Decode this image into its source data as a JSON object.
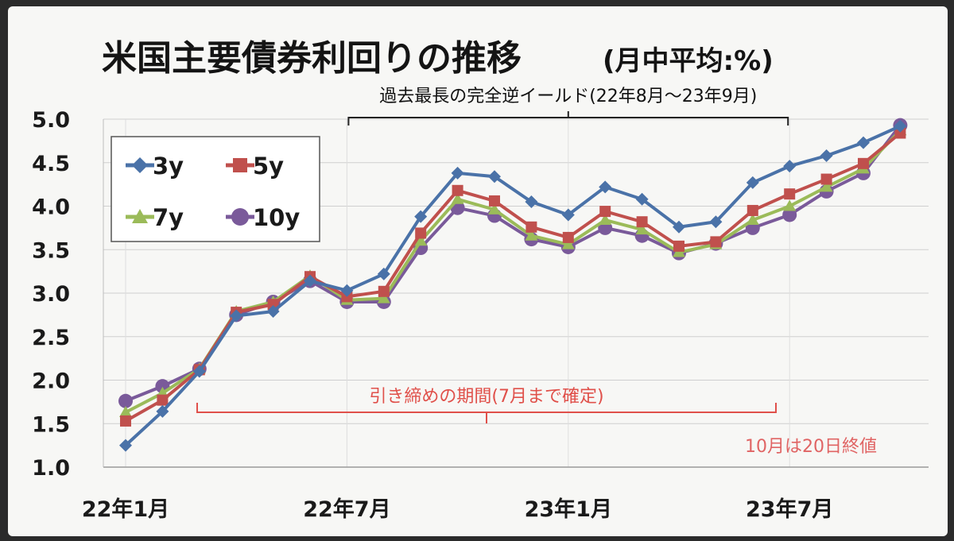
{
  "colors": {
    "3y": "#4a72a8",
    "5y": "#c0504d",
    "7y": "#9bbb59",
    "10y": "#7a5a9a",
    "bracket_black": "#222222",
    "bracket_red": "#e0504a",
    "note_red": "#e06464"
  },
  "chart_data": {
    "type": "line",
    "title": "米国主要債券利回りの推移",
    "subtitle": "(月中平均:%)",
    "xlabel": "",
    "ylabel": "",
    "ylim": [
      1.0,
      5.0
    ],
    "yticks": [
      "5.0",
      "4.5",
      "4.0",
      "3.5",
      "3.0",
      "2.5",
      "2.0",
      "1.5",
      "1.0"
    ],
    "xtick_labels": [
      {
        "label": "22年1月",
        "index": 0
      },
      {
        "label": "22年7月",
        "index": 6
      },
      {
        "label": "23年1月",
        "index": 12
      },
      {
        "label": "23年7月",
        "index": 18
      }
    ],
    "grid": true,
    "legend_position": "top-left",
    "x": [
      "22-01",
      "22-02",
      "22-03",
      "22-04",
      "22-05",
      "22-06",
      "22-07",
      "22-08",
      "22-09",
      "22-10",
      "22-11",
      "22-12",
      "23-01",
      "23-02",
      "23-03",
      "23-04",
      "23-05",
      "23-06",
      "23-07",
      "23-08",
      "23-09",
      "23-10"
    ],
    "series": [
      {
        "name": "3y",
        "marker": "diamond",
        "values": [
          1.25,
          1.64,
          2.1,
          2.74,
          2.79,
          3.14,
          3.03,
          3.22,
          3.88,
          4.38,
          4.34,
          4.05,
          3.9,
          4.22,
          4.08,
          3.76,
          3.82,
          4.27,
          4.46,
          4.58,
          4.73,
          4.92
        ]
      },
      {
        "name": "5y",
        "marker": "square",
        "values": [
          1.53,
          1.77,
          2.12,
          2.78,
          2.87,
          3.19,
          2.96,
          3.02,
          3.69,
          4.18,
          4.06,
          3.76,
          3.64,
          3.94,
          3.82,
          3.54,
          3.59,
          3.95,
          4.14,
          4.31,
          4.49,
          4.84
        ]
      },
      {
        "name": "7y",
        "marker": "triangle",
        "values": [
          1.63,
          1.85,
          2.13,
          2.79,
          2.9,
          3.2,
          2.92,
          2.94,
          3.6,
          4.08,
          3.96,
          3.66,
          3.56,
          3.84,
          3.73,
          3.47,
          3.56,
          3.84,
          4.0,
          4.22,
          4.43,
          4.87
        ]
      },
      {
        "name": "10y",
        "marker": "circle",
        "values": [
          1.76,
          1.93,
          2.13,
          2.75,
          2.9,
          3.14,
          2.9,
          2.9,
          3.52,
          3.98,
          3.89,
          3.62,
          3.53,
          3.75,
          3.66,
          3.46,
          3.57,
          3.75,
          3.9,
          4.17,
          4.38,
          4.93
        ]
      }
    ],
    "annotations": [
      {
        "name": "inversion",
        "text": "過去最長の完全逆イールド(22年8月〜23年9月)",
        "from_index": 6,
        "to_index": 18
      },
      {
        "name": "tightening",
        "text": "引き締めの期間(7月まで確定)",
        "from_index": 2,
        "to_index": 18
      },
      {
        "name": "note",
        "text": "10月は20日終値"
      }
    ]
  }
}
